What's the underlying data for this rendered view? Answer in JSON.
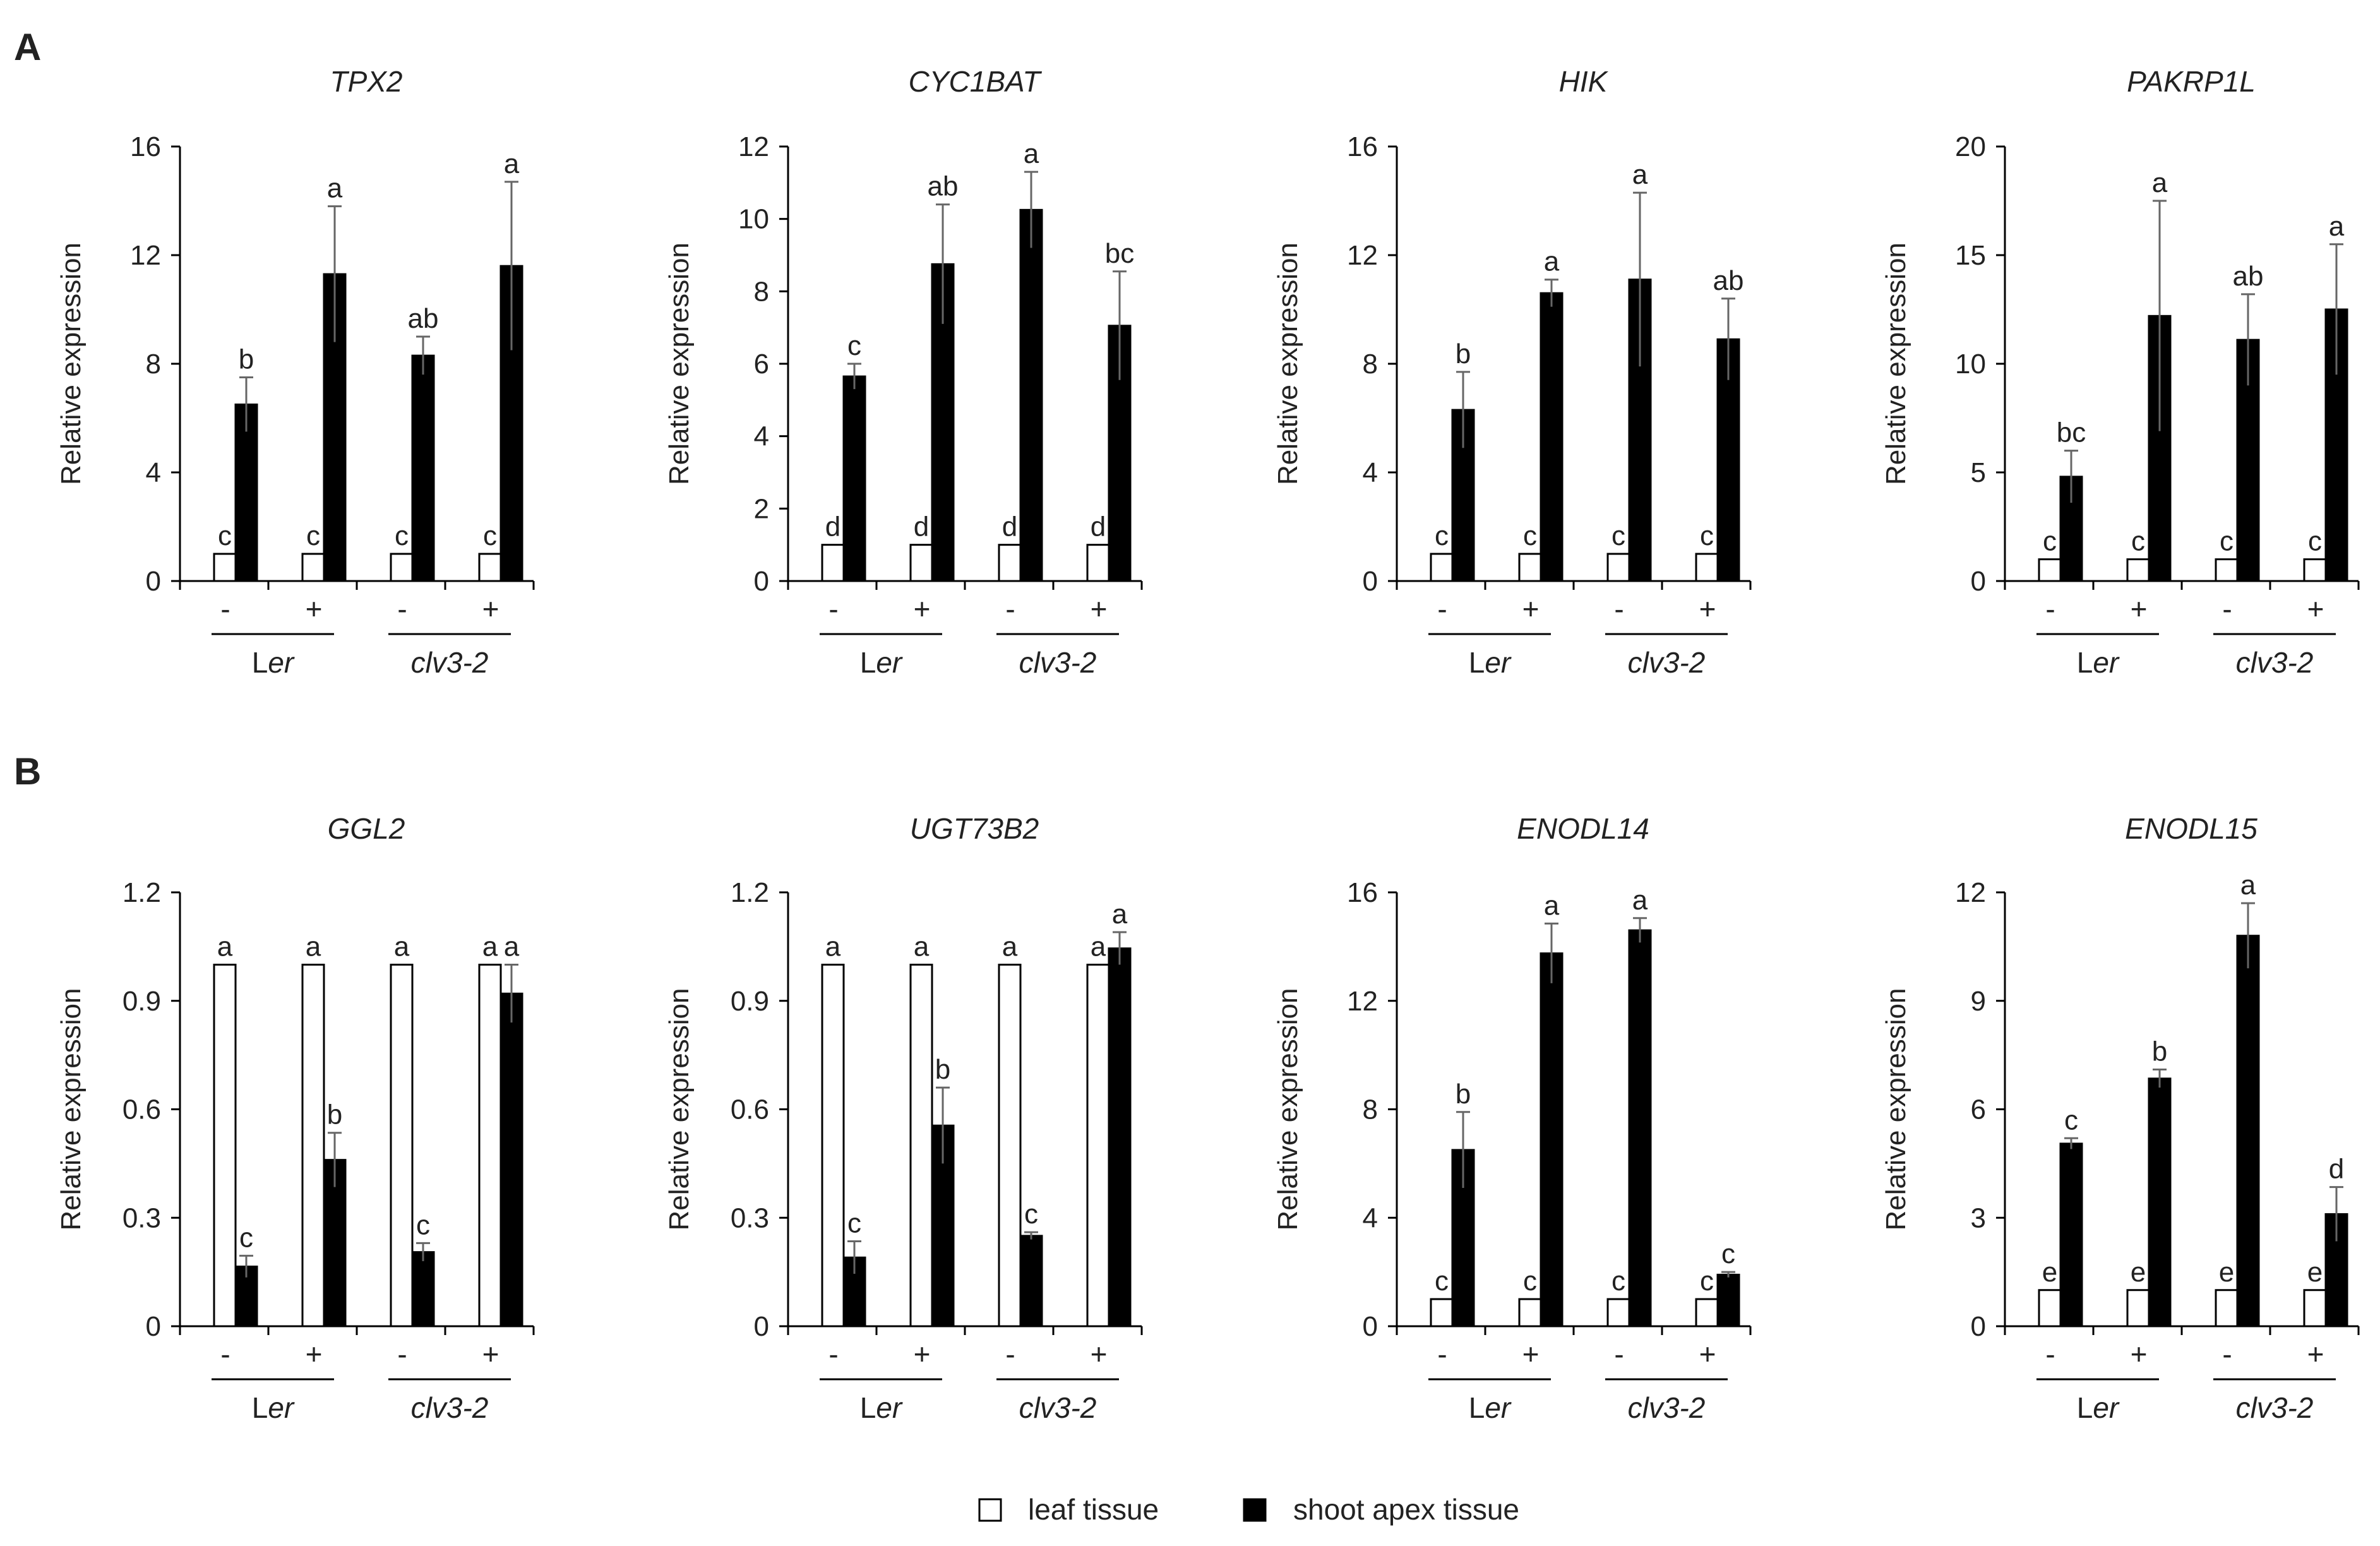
{
  "figure": {
    "legend": {
      "leaf_label": "leaf tissue",
      "apex_label": "shoot apex tissue",
      "leaf_color": "#ffffff",
      "apex_color": "#000000"
    }
  },
  "chart_data": [
    {
      "type": "bar",
      "panel": "A",
      "title": "TPX2",
      "ylabel": "Relative expression",
      "ylim": [
        0,
        16
      ],
      "yticks": [
        0,
        4,
        8,
        12,
        16
      ],
      "tick_labels": [
        "0",
        "4",
        "8",
        "12",
        "16"
      ],
      "treatments": [
        "-",
        "+",
        "-",
        "+"
      ],
      "genotypes": [
        "Ler",
        "clv3-2"
      ],
      "genotype_parts": [
        [
          "L",
          "er"
        ],
        [
          "clv3-2",
          ""
        ]
      ],
      "series": [
        {
          "name": "leaf tissue",
          "values": [
            1,
            1,
            1,
            1
          ],
          "errors": [
            0,
            0,
            0,
            0
          ],
          "letters": [
            "c",
            "c",
            "c",
            "c"
          ]
        },
        {
          "name": "shoot apex tissue",
          "values": [
            6.5,
            11.3,
            8.3,
            11.6
          ],
          "errors": [
            1.0,
            2.5,
            0.7,
            3.1
          ],
          "letters": [
            "b",
            "a",
            "ab",
            "a"
          ]
        }
      ]
    },
    {
      "type": "bar",
      "panel": "",
      "title": "CYC1BAT",
      "ylabel": "Relative expression",
      "ylim": [
        0,
        12
      ],
      "yticks": [
        0,
        2,
        4,
        6,
        8,
        10,
        12
      ],
      "tick_labels": [
        "0",
        "2",
        "4",
        "6",
        "8",
        "10",
        "12"
      ],
      "treatments": [
        "-",
        "+",
        "-",
        "+"
      ],
      "genotypes": [
        "Ler",
        "clv3-2"
      ],
      "genotype_parts": [
        [
          "L",
          "er"
        ],
        [
          "clv3-2",
          ""
        ]
      ],
      "series": [
        {
          "name": "leaf tissue",
          "values": [
            1,
            1,
            1,
            1
          ],
          "errors": [
            0,
            0,
            0,
            0
          ],
          "letters": [
            "d",
            "d",
            "d",
            "d"
          ]
        },
        {
          "name": "shoot apex tissue",
          "values": [
            5.65,
            8.75,
            10.25,
            7.05
          ],
          "errors": [
            0.35,
            1.65,
            1.05,
            1.5
          ],
          "letters": [
            "c",
            "ab",
            "a",
            "bc"
          ]
        }
      ]
    },
    {
      "type": "bar",
      "panel": "",
      "title": "HIK",
      "ylabel": "Relative expression",
      "ylim": [
        0,
        16
      ],
      "yticks": [
        0,
        4,
        8,
        12,
        16
      ],
      "tick_labels": [
        "0",
        "4",
        "8",
        "12",
        "16"
      ],
      "treatments": [
        "-",
        "+",
        "-",
        "+"
      ],
      "genotypes": [
        "Ler",
        "clv3-2"
      ],
      "genotype_parts": [
        [
          "L",
          "er"
        ],
        [
          "clv3-2",
          ""
        ]
      ],
      "series": [
        {
          "name": "leaf tissue",
          "values": [
            1,
            1,
            1,
            1
          ],
          "errors": [
            0,
            0,
            0,
            0
          ],
          "letters": [
            "c",
            "c",
            "c",
            "c"
          ]
        },
        {
          "name": "shoot apex tissue",
          "values": [
            6.3,
            10.6,
            11.1,
            8.9
          ],
          "errors": [
            1.4,
            0.5,
            3.2,
            1.5
          ],
          "letters": [
            "b",
            "a",
            "a",
            "ab"
          ]
        }
      ]
    },
    {
      "type": "bar",
      "panel": "",
      "title": "PAKRP1L",
      "ylabel": "Relative expression",
      "ylim": [
        0,
        20
      ],
      "yticks": [
        0,
        5,
        10,
        15,
        20
      ],
      "tick_labels": [
        "0",
        "5",
        "10",
        "15",
        "20"
      ],
      "treatments": [
        "-",
        "+",
        "-",
        "+"
      ],
      "genotypes": [
        "Ler",
        "clv3-2"
      ],
      "genotype_parts": [
        [
          "L",
          "er"
        ],
        [
          "clv3-2",
          ""
        ]
      ],
      "series": [
        {
          "name": "leaf tissue",
          "values": [
            1,
            1,
            1,
            1
          ],
          "errors": [
            0,
            0,
            0,
            0
          ],
          "letters": [
            "c",
            "c",
            "c",
            "c"
          ]
        },
        {
          "name": "shoot apex tissue",
          "values": [
            4.8,
            12.2,
            11.1,
            12.5
          ],
          "errors": [
            1.2,
            5.3,
            2.1,
            3.0
          ],
          "letters": [
            "bc",
            "a",
            "ab",
            "a"
          ]
        }
      ]
    },
    {
      "type": "bar",
      "panel": "B",
      "title": "GGL2",
      "ylabel": "Relative expression",
      "ylim": [
        0,
        1.2
      ],
      "yticks": [
        0,
        0.3,
        0.6,
        0.9,
        1.2
      ],
      "tick_labels": [
        "0",
        "0.3",
        "0.6",
        "0.9",
        "1.2"
      ],
      "treatments": [
        "-",
        "+",
        "-",
        "+"
      ],
      "genotypes": [
        "Ler",
        "clv3-2"
      ],
      "genotype_parts": [
        [
          "L",
          "er"
        ],
        [
          "clv3-2",
          ""
        ]
      ],
      "series": [
        {
          "name": "leaf tissue",
          "values": [
            1,
            1,
            1,
            1
          ],
          "errors": [
            0,
            0,
            0,
            0
          ],
          "letters": [
            "a",
            "a",
            "a",
            "a"
          ]
        },
        {
          "name": "shoot apex tissue",
          "values": [
            0.165,
            0.46,
            0.205,
            0.92
          ],
          "errors": [
            0.03,
            0.075,
            0.025,
            0.08
          ],
          "letters": [
            "c",
            "b",
            "c",
            "a"
          ]
        }
      ]
    },
    {
      "type": "bar",
      "panel": "",
      "title": "UGT73B2",
      "ylabel": "Relative expression",
      "ylim": [
        0,
        1.2
      ],
      "yticks": [
        0,
        0.3,
        0.6,
        0.9,
        1.2
      ],
      "tick_labels": [
        "0",
        "0.3",
        "0.6",
        "0.9",
        "1.2"
      ],
      "treatments": [
        "-",
        "+",
        "-",
        "+"
      ],
      "genotypes": [
        "Ler",
        "clv3-2"
      ],
      "genotype_parts": [
        [
          "L",
          "er"
        ],
        [
          "clv3-2",
          ""
        ]
      ],
      "series": [
        {
          "name": "leaf tissue",
          "values": [
            1,
            1,
            1,
            1
          ],
          "errors": [
            0,
            0,
            0,
            0
          ],
          "letters": [
            "a",
            "a",
            "a",
            "a"
          ]
        },
        {
          "name": "shoot apex tissue",
          "values": [
            0.19,
            0.555,
            0.25,
            1.045
          ],
          "errors": [
            0.045,
            0.105,
            0.01,
            0.045
          ],
          "letters": [
            "c",
            "b",
            "c",
            "a"
          ]
        }
      ]
    },
    {
      "type": "bar",
      "panel": "",
      "title": "ENODL14",
      "ylabel": "Relative expression",
      "ylim": [
        0,
        16
      ],
      "yticks": [
        0,
        4,
        8,
        12,
        16
      ],
      "tick_labels": [
        "0",
        "4",
        "8",
        "12",
        "16"
      ],
      "treatments": [
        "-",
        "+",
        "-",
        "+"
      ],
      "genotypes": [
        "Ler",
        "clv3-2"
      ],
      "genotype_parts": [
        [
          "L",
          "er"
        ],
        [
          "clv3-2",
          ""
        ]
      ],
      "series": [
        {
          "name": "leaf tissue",
          "values": [
            1,
            1,
            1,
            1
          ],
          "errors": [
            0,
            0,
            0,
            0
          ],
          "letters": [
            "c",
            "c",
            "c",
            "c"
          ]
        },
        {
          "name": "shoot apex tissue",
          "values": [
            6.5,
            13.75,
            14.6,
            1.9
          ],
          "errors": [
            1.4,
            1.1,
            0.45,
            0.1
          ],
          "letters": [
            "b",
            "a",
            "a",
            "c"
          ]
        }
      ]
    },
    {
      "type": "bar",
      "panel": "",
      "title": "ENODL15",
      "ylabel": "Relative expression",
      "ylim": [
        0,
        12
      ],
      "yticks": [
        0,
        3,
        6,
        9,
        12
      ],
      "tick_labels": [
        "0",
        "3",
        "6",
        "9",
        "12"
      ],
      "treatments": [
        "-",
        "+",
        "-",
        "+"
      ],
      "genotypes": [
        "Ler",
        "clv3-2"
      ],
      "genotype_parts": [
        [
          "L",
          "er"
        ],
        [
          "clv3-2",
          ""
        ]
      ],
      "series": [
        {
          "name": "leaf tissue",
          "values": [
            1,
            1,
            1,
            1
          ],
          "errors": [
            0,
            0,
            0,
            0
          ],
          "letters": [
            "e",
            "e",
            "e",
            "e"
          ]
        },
        {
          "name": "shoot apex tissue",
          "values": [
            5.05,
            6.85,
            10.8,
            3.1
          ],
          "errors": [
            0.15,
            0.25,
            0.9,
            0.75
          ],
          "letters": [
            "c",
            "b",
            "a",
            "d"
          ]
        }
      ]
    }
  ]
}
